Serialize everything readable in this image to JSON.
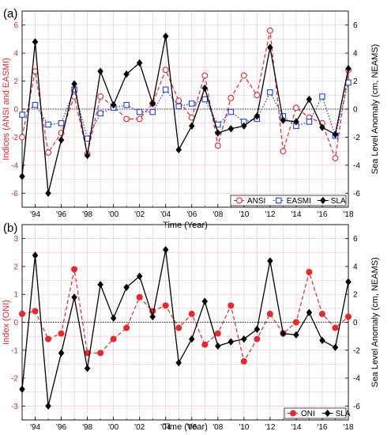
{
  "colors": {
    "red": "#e8262b",
    "blue": "#1f3fe0",
    "black": "#000000",
    "grid": "#f4c7d2"
  },
  "chart_data": [
    {
      "panel_label": "(a)",
      "type": "line",
      "xlabel": "Time (Year)",
      "ylabel_left": "Indices (ANSI and EASMI)",
      "ylabel_right": "Sea Level Anomaly (cm, NEAMS)",
      "xlim": [
        1993,
        2018
      ],
      "ylim_left": [
        -7,
        7
      ],
      "ylim_right": [
        -7,
        7
      ],
      "x_ticks": [
        1994,
        1996,
        1998,
        2000,
        2002,
        2004,
        2006,
        2008,
        2010,
        2012,
        2014,
        2016,
        2018
      ],
      "x_tick_labels": [
        "'94",
        "'96",
        "'98",
        "'00",
        "'02",
        "'04",
        "'06",
        "'08",
        "'10",
        "'12",
        "'14",
        "'16",
        "'18"
      ],
      "y_ticks_left": [
        -6,
        -4,
        -2,
        0,
        2,
        4,
        6
      ],
      "y_tick_labels_left": [
        "-6",
        "-4",
        "-2",
        "0",
        "2",
        "4",
        "6"
      ],
      "y_ticks_right": [
        -6,
        -4,
        -2,
        0,
        2,
        4,
        6
      ],
      "y_tick_labels_right": [
        "-6",
        "-4",
        "-2",
        "0",
        "2",
        "4",
        "6"
      ],
      "grid": true,
      "legend_position": "bottom-right",
      "x": [
        1993,
        1994,
        1995,
        1996,
        1997,
        1998,
        1999,
        2000,
        2001,
        2002,
        2003,
        2004,
        2005,
        2006,
        2007,
        2008,
        2009,
        2010,
        2011,
        2012,
        2013,
        2014,
        2015,
        2016,
        2017,
        2018
      ],
      "series": [
        {
          "name": "ANSI",
          "axis": "left",
          "color": "#e8262b",
          "line": "dashed",
          "marker": "open-circle",
          "values": [
            -2.0,
            2.7,
            -3.1,
            -1.7,
            0.9,
            -3.2,
            0.9,
            0.2,
            -0.7,
            -0.7,
            0.4,
            2.8,
            0.6,
            -0.6,
            2.4,
            -2.6,
            0.8,
            2.4,
            1.0,
            5.6,
            -3.0,
            0.1,
            -0.6,
            -1.0,
            -3.5,
            2.8
          ]
        },
        {
          "name": "EASMI",
          "axis": "left",
          "color": "#1f3fe0",
          "line": "dotted",
          "marker": "open-square",
          "values": [
            -0.4,
            0.3,
            -1.1,
            -1.0,
            1.4,
            -2.1,
            -0.3,
            0.1,
            0.3,
            -0.2,
            -0.2,
            1.4,
            0.2,
            0.4,
            0.7,
            -1.1,
            -0.2,
            -0.9,
            -0.7,
            1.2,
            -0.5,
            -1.2,
            -0.9,
            0.9,
            -1.9,
            1.9
          ]
        },
        {
          "name": "SLA",
          "axis": "right",
          "color": "#000000",
          "line": "solid",
          "marker": "filled-diamond",
          "values": [
            -4.8,
            4.8,
            -6.0,
            -2.2,
            1.8,
            -3.3,
            2.7,
            0.3,
            2.5,
            3.3,
            0.4,
            5.2,
            -2.9,
            -1.2,
            1.5,
            -1.7,
            -1.4,
            -1.2,
            -0.5,
            4.4,
            -0.8,
            -0.9,
            0.7,
            -1.3,
            -1.8,
            2.9
          ]
        }
      ]
    },
    {
      "panel_label": "(b)",
      "type": "line",
      "xlabel": "Time (Year)",
      "ylabel_left": "Index (ONI)",
      "ylabel_right": "Sea Level Anomaly (cm, NEAMS)",
      "xlim": [
        1993,
        2018
      ],
      "ylim_left": [
        -3.5,
        3.5
      ],
      "ylim_right": [
        -7,
        7
      ],
      "x_ticks": [
        1994,
        1996,
        1998,
        2000,
        2002,
        2004,
        2006,
        2008,
        2010,
        2012,
        2014,
        2016,
        2018
      ],
      "x_tick_labels": [
        "'94",
        "'96",
        "'98",
        "'00",
        "'02",
        "'04",
        "'06",
        "'08",
        "'10",
        "'12",
        "'14",
        "'16",
        "'18"
      ],
      "y_ticks_left": [
        -3,
        -2,
        -1,
        0,
        1,
        2,
        3
      ],
      "y_tick_labels_left": [
        "-3",
        "-2",
        "-1",
        "0",
        "1",
        "2",
        "3"
      ],
      "y_ticks_right": [
        -6,
        -4,
        -2,
        0,
        2,
        4,
        6
      ],
      "y_tick_labels_right": [
        "-6",
        "-4",
        "-2",
        "0",
        "2",
        "4",
        "6"
      ],
      "grid": true,
      "legend_position": "bottom-right",
      "x": [
        1993,
        1994,
        1995,
        1996,
        1997,
        1998,
        1999,
        2000,
        2001,
        2002,
        2003,
        2004,
        2005,
        2006,
        2007,
        2008,
        2009,
        2010,
        2011,
        2012,
        2013,
        2014,
        2015,
        2016,
        2017,
        2018
      ],
      "series": [
        {
          "name": "ONI",
          "axis": "left",
          "color": "#e8262b",
          "line": "dashed",
          "marker": "filled-circle",
          "values": [
            0.3,
            0.4,
            -0.6,
            -0.4,
            1.9,
            -1.1,
            -1.1,
            -0.6,
            -0.2,
            0.9,
            0.4,
            0.6,
            -0.2,
            0.3,
            -0.8,
            -0.4,
            0.6,
            -1.4,
            -0.6,
            0.3,
            -0.4,
            0.0,
            1.8,
            0.3,
            -0.2,
            0.2
          ]
        },
        {
          "name": "SLA",
          "axis": "right",
          "color": "#000000",
          "line": "solid",
          "marker": "filled-diamond",
          "values": [
            -4.8,
            4.8,
            -6.0,
            -2.2,
            1.8,
            -3.3,
            2.7,
            0.3,
            2.5,
            3.3,
            0.4,
            5.2,
            -2.9,
            -1.2,
            1.5,
            -1.7,
            -1.4,
            -1.2,
            -0.5,
            4.4,
            -0.8,
            -0.9,
            0.7,
            -1.3,
            -1.8,
            2.9
          ]
        }
      ]
    }
  ]
}
